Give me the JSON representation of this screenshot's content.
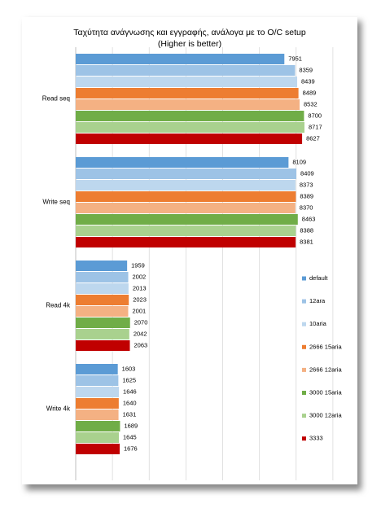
{
  "chart_data": {
    "type": "bar",
    "orientation": "horizontal",
    "title": "Ταχύτητα ανάγνωσης και εγγραφής,  ανάλογα με το O/C setup",
    "subtitle": "(Higher is better)",
    "categories": [
      "Read seq",
      "Write seq",
      "Read 4k",
      "Write 4k"
    ],
    "series": [
      {
        "name": "default",
        "color": "#5b9bd5",
        "values": [
          7951,
          8109,
          1959,
          1603
        ]
      },
      {
        "name": "12ara",
        "color": "#9dc3e6",
        "values": [
          8359,
          8409,
          2002,
          1625
        ]
      },
      {
        "name": "10aria",
        "color": "#bdd7ee",
        "values": [
          8439,
          8373,
          2013,
          1646
        ]
      },
      {
        "name": "2666 15aria",
        "color": "#ed7d31",
        "values": [
          8489,
          8389,
          2023,
          1640
        ]
      },
      {
        "name": "2666 12aria",
        "color": "#f4b183",
        "values": [
          8532,
          8370,
          2001,
          1631
        ]
      },
      {
        "name": "3000 15aria",
        "color": "#70ad47",
        "values": [
          8700,
          8463,
          2070,
          1689
        ]
      },
      {
        "name": "3000 12aria",
        "color": "#a9d18e",
        "values": [
          8717,
          8388,
          2042,
          1645
        ]
      },
      {
        "name": "3333",
        "color": "#c00000",
        "values": [
          8627,
          8381,
          2063,
          1676
        ]
      }
    ],
    "xlim": [
      0,
      10300
    ],
    "xticks": [
      0,
      1400,
      2800,
      4200,
      5600,
      7000,
      8400,
      9800
    ],
    "grid": true,
    "legend": "right"
  }
}
